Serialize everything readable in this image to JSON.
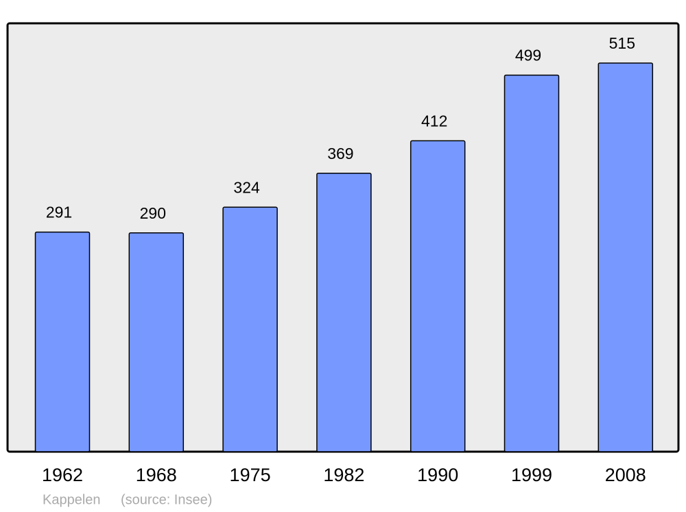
{
  "chart_data": {
    "type": "bar",
    "categories": [
      "1962",
      "1968",
      "1975",
      "1982",
      "1990",
      "1999",
      "2008"
    ],
    "values": [
      291,
      290,
      324,
      369,
      412,
      499,
      515
    ],
    "color": "#7799ff",
    "caption": "Kappelen",
    "source": "(source: Insee)"
  }
}
